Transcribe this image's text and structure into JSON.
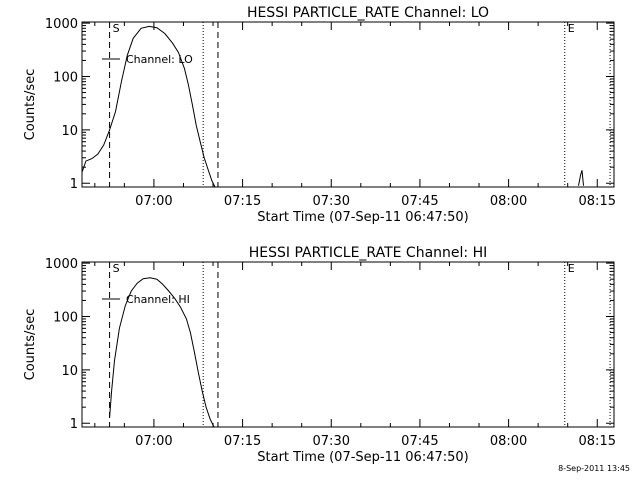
{
  "footer_date": "8-Sep-2011 13:45",
  "chart_data": [
    {
      "type": "line",
      "title": "HESSI PARTICLE_RATE Channel: LO",
      "xlabel": "Start Time (07-Sep-11 06:47:50)",
      "ylabel": "Counts/sec",
      "yscale": "log",
      "ylim": [
        0.85,
        1050
      ],
      "xlim": [
        0,
        5400
      ],
      "x_unit": "seconds after 06:47:50",
      "xticks": [
        730,
        1630,
        2530,
        3430,
        4330,
        5230
      ],
      "xtick_labels": [
        "07:00",
        "07:15",
        "07:30",
        "07:45",
        "08:00",
        "08:15"
      ],
      "yticks": [
        1,
        10,
        100,
        1000
      ],
      "ytick_labels": [
        "1",
        "10",
        "100",
        "1000"
      ],
      "legend": "Channel: LO",
      "series": [
        {
          "name": "Channel: LO",
          "x": [
            0,
            40,
            100,
            160,
            220,
            280,
            340,
            400,
            460,
            520,
            600,
            680,
            760,
            840,
            920,
            980,
            1040,
            1080,
            1120,
            1160,
            1200,
            1240,
            1280,
            1320,
            1350
          ],
          "y": [
            1.6,
            2.6,
            2.9,
            3.5,
            5.2,
            10,
            22,
            80,
            250,
            520,
            800,
            870,
            820,
            640,
            420,
            280,
            140,
            70,
            30,
            12,
            6,
            3,
            1.8,
            1.1,
            0.85
          ]
        },
        {
          "name": "",
          "x": [
            5040,
            5060,
            5075,
            5090
          ],
          "y": [
            0.9,
            1.4,
            1.75,
            0.9
          ]
        }
      ],
      "markers": [
        {
          "label": "S",
          "x": 280,
          "style": "dashed"
        },
        {
          "label": "",
          "x": 1230,
          "style": "dotted"
        },
        {
          "label": "",
          "x": 1380,
          "style": "dashed"
        },
        {
          "label": "E",
          "x": 4900,
          "style": "dotted"
        },
        {
          "label": "",
          "x": 5360,
          "style": "dotted"
        }
      ]
    },
    {
      "type": "line",
      "title": "HESSI PARTICLE_RATE Channel: HI",
      "xlabel": "Start Time (07-Sep-11 06:47:50)",
      "ylabel": "Counts/sec",
      "yscale": "log",
      "ylim": [
        0.85,
        1050
      ],
      "xlim": [
        0,
        5400
      ],
      "x_unit": "seconds after 06:47:50",
      "xticks": [
        730,
        1630,
        2530,
        3430,
        4330,
        5230
      ],
      "xtick_labels": [
        "07:00",
        "07:15",
        "07:30",
        "07:45",
        "08:00",
        "08:15"
      ],
      "yticks": [
        1,
        10,
        100,
        1000
      ],
      "ytick_labels": [
        "1",
        "10",
        "100",
        "1000"
      ],
      "legend": "Channel: HI",
      "series": [
        {
          "name": "Channel: HI",
          "x": [
            280,
            300,
            330,
            380,
            440,
            500,
            560,
            620,
            690,
            760,
            820,
            880,
            940,
            1000,
            1060,
            1100,
            1140,
            1180,
            1220,
            1260,
            1300,
            1340
          ],
          "y": [
            1.3,
            4,
            15,
            60,
            160,
            300,
            420,
            510,
            530,
            500,
            400,
            300,
            220,
            150,
            90,
            50,
            22,
            9,
            4,
            2,
            1.2,
            0.85
          ]
        }
      ],
      "markers": [
        {
          "label": "S",
          "x": 280,
          "style": "dashed"
        },
        {
          "label": "",
          "x": 1230,
          "style": "dotted"
        },
        {
          "label": "",
          "x": 1380,
          "style": "dashed"
        },
        {
          "label": "E",
          "x": 4900,
          "style": "dotted"
        },
        {
          "label": "",
          "x": 5360,
          "style": "dotted"
        }
      ]
    }
  ]
}
